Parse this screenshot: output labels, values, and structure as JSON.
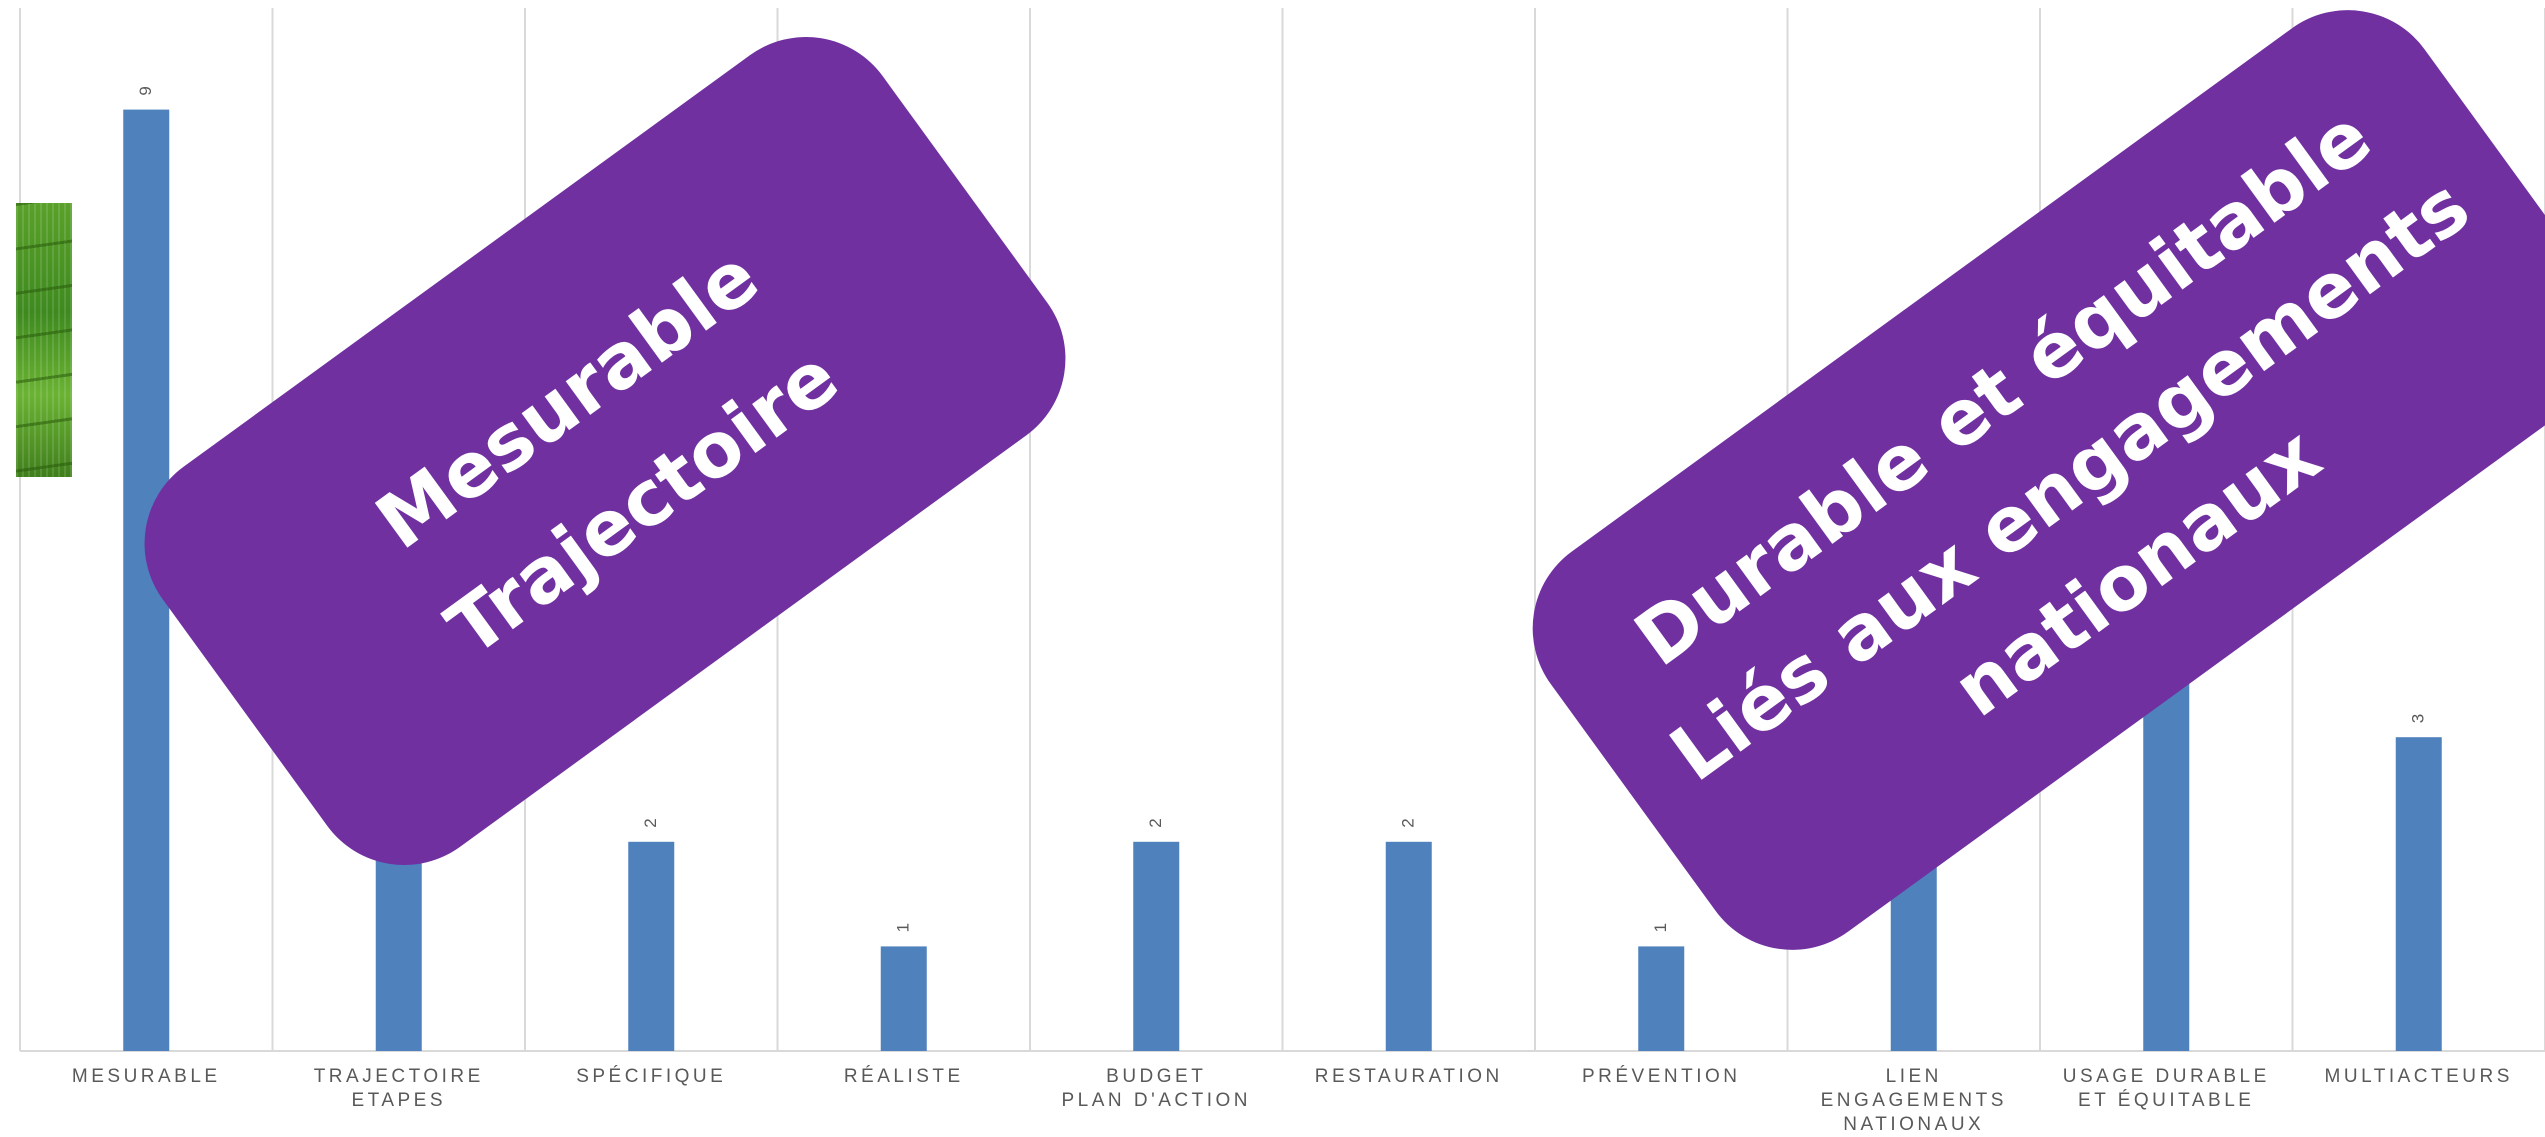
{
  "chart_data": {
    "type": "bar",
    "categories": [
      "MESURABLE",
      "TRAJECTOIRE\nETAPES",
      "SPÉCIFIQUE",
      "RÉALISTE",
      "BUDGET\nPLAN D'ACTION",
      "RESTAURATION",
      "PRÉVENTION",
      "LIEN ENGAGEMENTS\nNATIONAUX",
      "USAGE DURABLE\nET ÉQUITABLE",
      "MULTIACTEURS"
    ],
    "values": [
      9,
      2,
      2,
      1,
      2,
      2,
      1,
      2,
      4,
      3
    ],
    "data_labels": [
      "9",
      "",
      "2",
      "1",
      "2",
      "2",
      "1",
      "",
      "",
      "3"
    ],
    "ylim": [
      0,
      10
    ],
    "grid": "vertical category separators",
    "bar_color": "#4f81bd",
    "title": "",
    "xlabel": "",
    "ylabel": ""
  },
  "overlays": {
    "left_banner": {
      "lines": [
        "Mesurable",
        "Trajectoire"
      ],
      "color": "#7030a0"
    },
    "right_banner": {
      "lines": [
        "Durable et équitable",
        "Liés aux engagements",
        "nationaux"
      ],
      "color": "#7030a0"
    },
    "photo": {
      "icon": "tea-plantation-photo"
    }
  }
}
